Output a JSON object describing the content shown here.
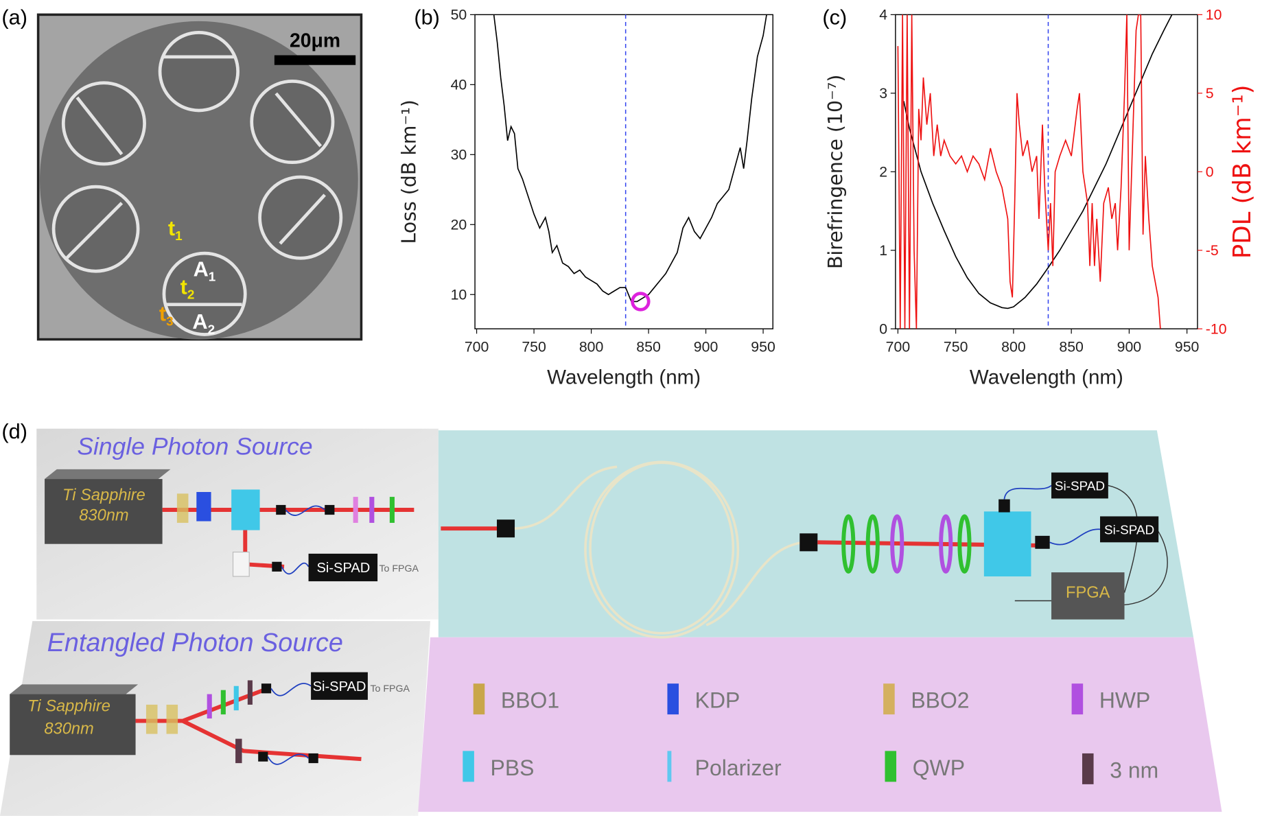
{
  "panel_labels": [
    "(a)",
    "(b)",
    "(c)",
    "(d)"
  ],
  "panel_a": {
    "scale_bar": "20μm",
    "labels": [
      {
        "text": "t",
        "sub": "1",
        "color": "#f2e400"
      },
      {
        "text": "A",
        "sub": "1",
        "color": "#ffffff"
      },
      {
        "text": "t",
        "sub": "2",
        "color": "#f2e400"
      },
      {
        "text": "A",
        "sub": "2",
        "color": "#ffffff"
      },
      {
        "text": "t",
        "sub": "3",
        "color": "#f0a000"
      }
    ]
  },
  "chart_data": [
    {
      "type": "line",
      "xlabel": "Wavelength (nm)",
      "ylabel": "Loss (dB km⁻¹)",
      "color": "#000000",
      "x": [
        715,
        718,
        721,
        724,
        727,
        730,
        733,
        736,
        740,
        745,
        750,
        755,
        760,
        763,
        766,
        770,
        775,
        780,
        785,
        790,
        795,
        800,
        805,
        810,
        815,
        820,
        825,
        830,
        835,
        840,
        845,
        850,
        855,
        860,
        865,
        870,
        875,
        880,
        885,
        890,
        895,
        900,
        905,
        910,
        915,
        920,
        925,
        930,
        933,
        936,
        940,
        945,
        950,
        953
      ],
      "values": [
        50,
        46,
        41,
        37,
        32,
        34,
        33,
        28,
        26.5,
        24,
        21.5,
        19.5,
        21,
        19,
        16,
        17,
        14.5,
        14,
        13,
        13.5,
        12.5,
        12,
        11.5,
        10.5,
        10,
        10.5,
        11,
        11,
        9,
        9,
        9.5,
        10,
        11,
        12,
        13,
        14.5,
        16,
        19.5,
        21,
        19,
        18,
        19.5,
        21,
        23,
        24,
        25,
        28,
        31,
        28,
        32,
        38,
        44,
        47,
        50
      ],
      "xlim": [
        698.5,
        958.5
      ],
      "xticks": [
        700,
        750,
        800,
        850,
        900,
        950
      ],
      "ylim": [
        5.1,
        50
      ],
      "yticks": [
        10,
        20,
        30,
        40,
        50
      ],
      "reference_line": {
        "x": 830,
        "color": "#3344ee"
      },
      "highlight": {
        "x": 843,
        "y": 9,
        "color": "#dd22dd"
      }
    },
    {
      "type": "line",
      "xlabel": "Wavelength (nm)",
      "ylabel": "Birefringence (10⁻⁷)",
      "y2label": "PDL (dB km⁻¹)",
      "series": [
        {
          "color": "#000000",
          "x": [
            705,
            710,
            720,
            730,
            740,
            750,
            760,
            770,
            780,
            790,
            795,
            800,
            810,
            820,
            830,
            840,
            850,
            860,
            870,
            880,
            890,
            900,
            910,
            920,
            930,
            937
          ],
          "values": [
            2.9,
            2.55,
            2.0,
            1.6,
            1.25,
            0.92,
            0.65,
            0.45,
            0.33,
            0.27,
            0.26,
            0.28,
            0.4,
            0.57,
            0.78,
            1.0,
            1.25,
            1.5,
            1.8,
            2.1,
            2.45,
            2.8,
            3.15,
            3.5,
            3.8,
            4.0
          ]
        },
        {
          "color": "#ee1111",
          "axis": "y2",
          "x": [
            700,
            702,
            704,
            706,
            708,
            710,
            712,
            714,
            716,
            718,
            720,
            722,
            725,
            728,
            731,
            734,
            737,
            740,
            745,
            750,
            755,
            760,
            765,
            770,
            775,
            780,
            785,
            790,
            795,
            797,
            799,
            801,
            803,
            805,
            808,
            812,
            816,
            820,
            822,
            825,
            827,
            830,
            832,
            834,
            836,
            840,
            845,
            850,
            855,
            857,
            860,
            864,
            866,
            868,
            870,
            872,
            875,
            878,
            882,
            885,
            888,
            890,
            893,
            896,
            898,
            900,
            903,
            906,
            908,
            910,
            912,
            914,
            917,
            920,
            925,
            927
          ],
          "values": [
            8,
            -10,
            10,
            -10,
            10,
            -10,
            10,
            -5,
            -10,
            4,
            2,
            6,
            3,
            5,
            1,
            3,
            1,
            2,
            1,
            0.5,
            1,
            0,
            1,
            0.5,
            -0.5,
            1.5,
            0,
            -1,
            -3,
            -7,
            -8,
            -2,
            5,
            3,
            1,
            2,
            0,
            1,
            -3,
            3,
            -1,
            -5,
            -2,
            -6,
            0,
            1,
            2,
            1,
            4,
            5,
            0,
            -2,
            -6,
            -2,
            -6,
            -3,
            -7,
            -2,
            -1,
            -3,
            -2,
            -5,
            -1,
            5,
            10,
            -5,
            2,
            9,
            10,
            10,
            -4,
            1,
            -3,
            -6,
            -8,
            -10
          ]
        }
      ],
      "xlim": [
        697.9,
        959.1
      ],
      "xticks": [
        700,
        750,
        800,
        850,
        900,
        950
      ],
      "ylim": [
        0,
        4
      ],
      "yticks": [
        0,
        1,
        2,
        3,
        4
      ],
      "y2lim": [
        -10,
        10
      ],
      "y2ticks": [
        -10,
        -5,
        0,
        5,
        10
      ],
      "reference_line": {
        "x": 830,
        "color": "#3344ee"
      }
    }
  ],
  "panel_d": {
    "single": {
      "title": "Single Photon Source",
      "laser": [
        "Ti Sapphire",
        "830nm"
      ],
      "detector": "Si-SPAD",
      "to": "To FPGA"
    },
    "entangled": {
      "title": "Entangled Photon Source",
      "laser": [
        "Ti Sapphire",
        "830nm"
      ],
      "detector": "Si-SPAD",
      "to": "To FPGA"
    },
    "main": {
      "detectors": [
        "Si-SPAD",
        "Si-SPAD"
      ],
      "fpga": "FPGA"
    },
    "legend": [
      {
        "label": "BBO1",
        "color": "#c9a64a"
      },
      {
        "label": "KDP",
        "color": "#2a4fe0"
      },
      {
        "label": "BBO2",
        "color": "#d4b060"
      },
      {
        "label": "HWP",
        "color": "#b050e0"
      },
      {
        "label": "PBS",
        "color": "#40c8e8"
      },
      {
        "label": "Polarizer",
        "color": "#60c8f0"
      },
      {
        "label": "QWP",
        "color": "#30c030"
      },
      {
        "label": "3 nm",
        "color": "#5a3a4a"
      }
    ]
  }
}
